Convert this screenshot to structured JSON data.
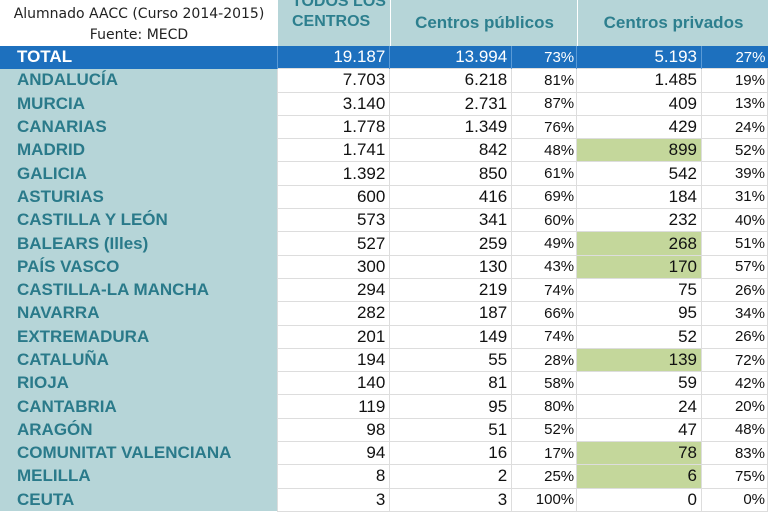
{
  "caption": {
    "line1": "Alumnado AACC (Curso 2014-2015)",
    "line2": "Fuente: MECD"
  },
  "headers": {
    "todos": "TODOS LOS CENTROS",
    "publicos": "Centros públicos",
    "privados": "Centros privados"
  },
  "colors": {
    "header_bg": "#b6d5d8",
    "total_bg": "#1d70be",
    "highlight": "#c4d79b",
    "name_text": "#2a7a8a"
  },
  "total": {
    "name": "TOTAL",
    "todos": "19.187",
    "pub": "13.994",
    "pub_pct": "73%",
    "priv": "5.193",
    "priv_pct": "27%"
  },
  "rows": [
    {
      "name": "ANDALUCÍA",
      "todos": "7.703",
      "pub": "6.218",
      "pub_pct": "81%",
      "priv": "1.485",
      "priv_pct": "19%",
      "hl": false
    },
    {
      "name": "MURCIA",
      "todos": "3.140",
      "pub": "2.731",
      "pub_pct": "87%",
      "priv": "409",
      "priv_pct": "13%",
      "hl": false
    },
    {
      "name": "CANARIAS",
      "todos": "1.778",
      "pub": "1.349",
      "pub_pct": "76%",
      "priv": "429",
      "priv_pct": "24%",
      "hl": false
    },
    {
      "name": "MADRID",
      "todos": "1.741",
      "pub": "842",
      "pub_pct": "48%",
      "priv": "899",
      "priv_pct": "52%",
      "hl": true
    },
    {
      "name": "GALICIA",
      "todos": "1.392",
      "pub": "850",
      "pub_pct": "61%",
      "priv": "542",
      "priv_pct": "39%",
      "hl": false
    },
    {
      "name": "ASTURIAS",
      "todos": "600",
      "pub": "416",
      "pub_pct": "69%",
      "priv": "184",
      "priv_pct": "31%",
      "hl": false
    },
    {
      "name": "CASTILLA Y LEÓN",
      "todos": "573",
      "pub": "341",
      "pub_pct": "60%",
      "priv": "232",
      "priv_pct": "40%",
      "hl": false
    },
    {
      "name": "BALEARS (Illes)",
      "todos": "527",
      "pub": "259",
      "pub_pct": "49%",
      "priv": "268",
      "priv_pct": "51%",
      "hl": true
    },
    {
      "name": "PAÍS VASCO",
      "todos": "300",
      "pub": "130",
      "pub_pct": "43%",
      "priv": "170",
      "priv_pct": "57%",
      "hl": true
    },
    {
      "name": "CASTILLA-LA MANCHA",
      "todos": "294",
      "pub": "219",
      "pub_pct": "74%",
      "priv": "75",
      "priv_pct": "26%",
      "hl": false
    },
    {
      "name": "NAVARRA",
      "todos": "282",
      "pub": "187",
      "pub_pct": "66%",
      "priv": "95",
      "priv_pct": "34%",
      "hl": false
    },
    {
      "name": "EXTREMADURA",
      "todos": "201",
      "pub": "149",
      "pub_pct": "74%",
      "priv": "52",
      "priv_pct": "26%",
      "hl": false
    },
    {
      "name": "CATALUÑA",
      "todos": "194",
      "pub": "55",
      "pub_pct": "28%",
      "priv": "139",
      "priv_pct": "72%",
      "hl": true
    },
    {
      "name": "RIOJA",
      "todos": "140",
      "pub": "81",
      "pub_pct": "58%",
      "priv": "59",
      "priv_pct": "42%",
      "hl": false
    },
    {
      "name": "CANTABRIA",
      "todos": "119",
      "pub": "95",
      "pub_pct": "80%",
      "priv": "24",
      "priv_pct": "20%",
      "hl": false
    },
    {
      "name": "ARAGÓN",
      "todos": "98",
      "pub": "51",
      "pub_pct": "52%",
      "priv": "47",
      "priv_pct": "48%",
      "hl": false
    },
    {
      "name": "COMUNITAT VALENCIANA",
      "todos": "94",
      "pub": "16",
      "pub_pct": "17%",
      "priv": "78",
      "priv_pct": "83%",
      "hl": true
    },
    {
      "name": "MELILLA",
      "todos": "8",
      "pub": "2",
      "pub_pct": "25%",
      "priv": "6",
      "priv_pct": "75%",
      "hl": true
    },
    {
      "name": "CEUTA",
      "todos": "3",
      "pub": "3",
      "pub_pct": "100%",
      "priv": "0",
      "priv_pct": "0%",
      "hl": false
    }
  ]
}
